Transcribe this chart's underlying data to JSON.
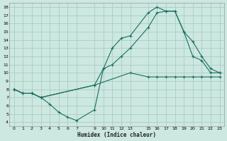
{
  "xlabel": "Humidex (Indice chaleur)",
  "bg_color": "#cce8e0",
  "grid_color": "#aaccC4",
  "line_color": "#1a6e60",
  "xlim": [
    -0.5,
    23.5
  ],
  "ylim": [
    3.5,
    18.5
  ],
  "xticks": [
    0,
    1,
    2,
    3,
    4,
    5,
    6,
    7,
    9,
    10,
    11,
    12,
    13,
    15,
    16,
    17,
    18,
    19,
    20,
    21,
    22,
    23
  ],
  "xticklabels": [
    "0",
    "1",
    "2",
    "3",
    "4",
    "5",
    "6",
    "7",
    "9",
    "10",
    "11",
    "12",
    "13",
    "15",
    "16",
    "17",
    "18",
    "19",
    "20",
    "21",
    "22",
    "23"
  ],
  "yticks": [
    4,
    5,
    6,
    7,
    8,
    9,
    10,
    11,
    12,
    13,
    14,
    15,
    16,
    17,
    18
  ],
  "line1": {
    "x": [
      0,
      1,
      2,
      3,
      4,
      5,
      6,
      7,
      9,
      10,
      11,
      12,
      13,
      15,
      16,
      17,
      18,
      19,
      20,
      21,
      22,
      23
    ],
    "y": [
      8,
      7.5,
      7.5,
      7.0,
      6.2,
      5.2,
      4.6,
      4.2,
      5.5,
      10.5,
      13.0,
      14.2,
      14.5,
      17.3,
      18.0,
      17.5,
      17.5,
      15.0,
      12.0,
      11.5,
      10.0,
      10.0
    ]
  },
  "line2": {
    "x": [
      0,
      1,
      2,
      3,
      9,
      10,
      11,
      12,
      13,
      15,
      16,
      17,
      18,
      19,
      20,
      21,
      22,
      23
    ],
    "y": [
      8.0,
      7.5,
      7.5,
      7.0,
      8.5,
      10.5,
      11.0,
      12.0,
      13.0,
      15.5,
      17.3,
      17.5,
      17.5,
      15.0,
      13.8,
      12.0,
      10.5,
      10.0
    ]
  },
  "line3": {
    "x": [
      0,
      1,
      2,
      3,
      9,
      13,
      15,
      16,
      17,
      18,
      19,
      20,
      21,
      22,
      23
    ],
    "y": [
      8.0,
      7.5,
      7.5,
      7.0,
      8.5,
      10.0,
      9.5,
      9.5,
      9.5,
      9.5,
      9.5,
      9.5,
      9.5,
      9.5,
      9.5
    ]
  }
}
